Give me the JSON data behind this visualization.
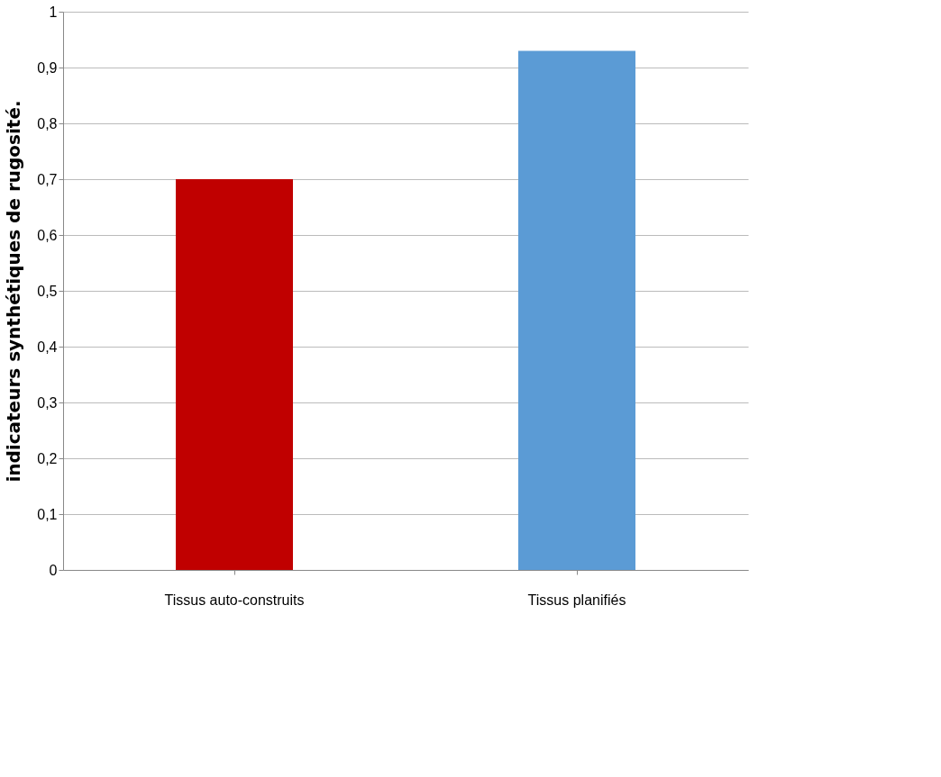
{
  "chart_data": {
    "type": "bar",
    "ylabel": "indicateurs synthétiques de rugosité.",
    "categories": [
      "Tissus auto-construits",
      "Tissus planifiés"
    ],
    "values": [
      0.7,
      0.93
    ],
    "colors": [
      "#c00000",
      "#5b9bd5"
    ],
    "ylim": [
      0,
      1
    ],
    "yticks": [
      0,
      {
        "value": 0.1,
        "label": "0,1"
      },
      {
        "value": 0.2,
        "label": "0,2"
      },
      {
        "value": 0.3,
        "label": "0,3"
      },
      {
        "value": 0.4,
        "label": "0,4"
      },
      {
        "value": 0.5,
        "label": "0,5"
      },
      {
        "value": 0.6,
        "label": "0,6"
      },
      {
        "value": 0.7,
        "label": "0,7"
      },
      {
        "value": 0.8,
        "label": "0,8"
      },
      {
        "value": 0.9,
        "label": "0,9"
      },
      1
    ],
    "grid": "y"
  }
}
